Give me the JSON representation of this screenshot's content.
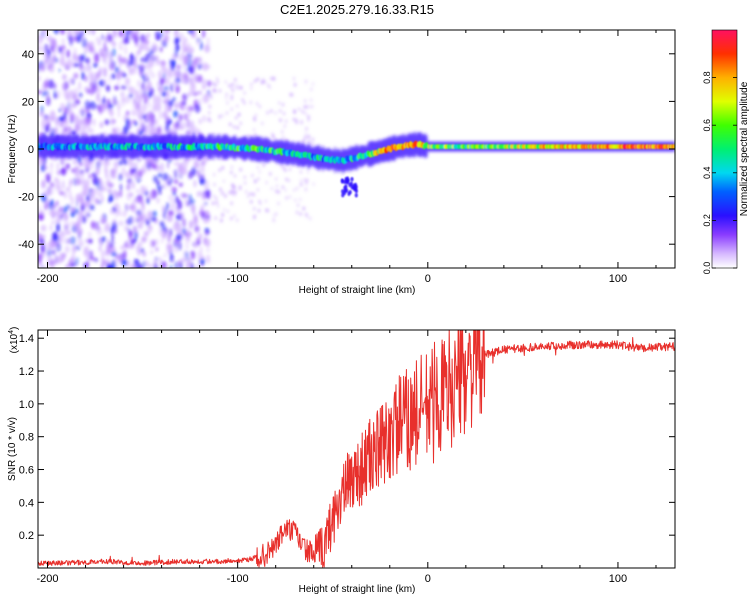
{
  "title": "C2E1.2025.279.16.33.R15",
  "chart_data": [
    {
      "type": "heatmap",
      "title": "C2E1.2025.279.16.33.R15",
      "xlabel": "Height of straight line (km)",
      "ylabel": "Frequency (Hz)",
      "xlim": [
        -205,
        130
      ],
      "ylim": [
        -50,
        50
      ],
      "xticks": [
        -200,
        -100,
        0,
        100
      ],
      "xtick_labels": [
        "-200",
        "-100",
        "0",
        "100"
      ],
      "yticks": [
        -40,
        -20,
        0,
        20,
        40
      ],
      "ytick_labels": [
        "-40",
        "-20",
        "0",
        "20",
        "40"
      ],
      "colorbar": {
        "label": "Normalized spectral amplitude",
        "range": [
          0,
          1
        ],
        "ticks": [
          0.0,
          0.2,
          0.4,
          0.6,
          0.8
        ],
        "tick_labels": [
          "0.0",
          "0.2",
          "0.4",
          "0.6",
          "0.8"
        ],
        "colormap": "rainbow"
      },
      "ridge": {
        "x": [
          -200,
          -150,
          -110,
          -90,
          -70,
          -55,
          -45,
          -35,
          -25,
          -15,
          -5,
          0,
          20,
          60,
          100,
          130
        ],
        "frequency": [
          1,
          1,
          1,
          0,
          -2,
          -4,
          -5,
          -3,
          -1,
          1,
          2,
          1,
          1,
          1,
          1,
          1
        ],
        "amplitude": [
          0.3,
          0.35,
          0.45,
          0.5,
          0.45,
          0.4,
          0.35,
          0.5,
          0.7,
          0.85,
          0.8,
          0.6,
          0.55,
          0.7,
          0.85,
          0.85
        ]
      }
    },
    {
      "type": "line",
      "xlabel": "Height of straight line (km)",
      "ylabel": "SNR (10 * v/v)",
      "y_multiplier": "(x10",
      "y_multiplier_exp": "4",
      "xlim": [
        -205,
        130
      ],
      "ylim": [
        0,
        1.45
      ],
      "xticks": [
        -200,
        -100,
        0,
        100
      ],
      "xtick_labels": [
        "-200",
        "-100",
        "0",
        "100"
      ],
      "yticks": [
        0.2,
        0.4,
        0.6,
        0.8,
        1.0,
        1.2,
        1.4
      ],
      "ytick_labels": [
        "0.2",
        "0.4",
        "0.6",
        "0.8",
        "1.0",
        "1.2",
        "1.4"
      ],
      "series": [
        {
          "name": "SNR",
          "color": "#e8302c",
          "x": [
            -205,
            -190,
            -170,
            -150,
            -130,
            -110,
            -95,
            -85,
            -80,
            -75,
            -70,
            -65,
            -60,
            -55,
            -50,
            -45,
            -40,
            -35,
            -30,
            -25,
            -20,
            -15,
            -10,
            -5,
            0,
            10,
            20,
            30,
            40,
            60,
            80,
            100,
            110,
            130
          ],
          "y": [
            0.03,
            0.03,
            0.04,
            0.03,
            0.04,
            0.04,
            0.05,
            0.08,
            0.14,
            0.24,
            0.22,
            0.12,
            0.08,
            0.12,
            0.3,
            0.45,
            0.55,
            0.6,
            0.68,
            0.72,
            0.8,
            0.88,
            0.9,
            0.95,
            0.98,
            1.08,
            1.2,
            1.3,
            1.33,
            1.35,
            1.36,
            1.36,
            1.34,
            1.35
          ]
        }
      ]
    }
  ]
}
